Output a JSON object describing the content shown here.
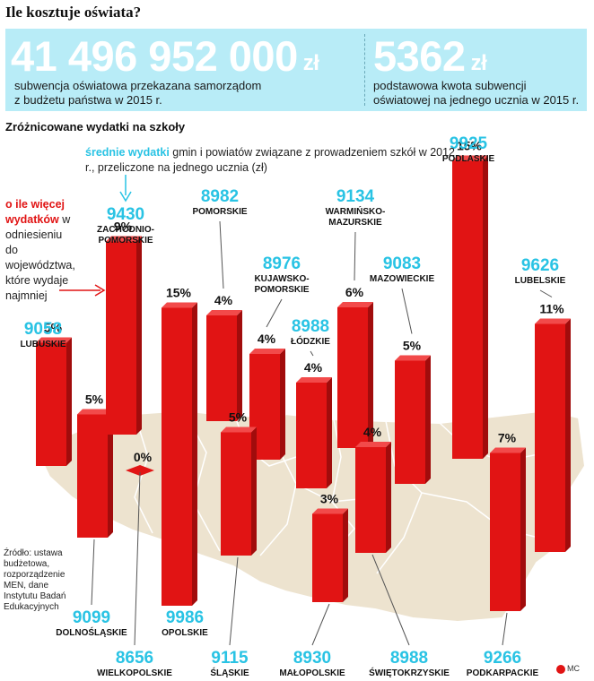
{
  "title": "Ile kosztuje oświata?",
  "banner": {
    "left_value": "41 496 952 000",
    "left_unit": "zł",
    "left_text_1": "subwencja oświatowa przekazana samorządom",
    "left_text_2": "z budżetu państwa w 2015 r.",
    "right_value": "5362",
    "right_unit": "zł",
    "right_text_1": "podstawowa kwota subwencji",
    "right_text_2": "oświatowej na jednego ucznia w 2015 r."
  },
  "subheading": "Zróżnicowane wydatki na szkoły",
  "legend": {
    "cyan_bold": "średnie wydatki",
    "cyan_rest": " gmin i powiatów związane z prowadzeniem szkół w 2012 r., przeliczone na jednego ucznia (zł)",
    "red_bold": "o ile więcej wydatków",
    "red_rest": " w odniesieniu do województwa, które wydaje najmniej"
  },
  "source": "Źródło: ustawa budżetowa, rozporządzenie MEN, dane Instytutu Badań Edukacyjnych",
  "credit": "MC",
  "colors": {
    "accent": "#29c3e4",
    "bar": "#e11414",
    "map": "#ede3cf"
  },
  "chart_data": {
    "type": "bar",
    "title": "Zróżnicowane wydatki na szkoły",
    "series": [
      {
        "name": "średnie wydatki (zł)",
        "values": [
          9058,
          9099,
          8656,
          9430,
          8982,
          9986,
          8976,
          9115,
          8988,
          8930,
          9134,
          9083,
          8988,
          9925,
          9266,
          9626
        ]
      },
      {
        "name": "o ile więcej wydatków (%)",
        "values": [
          5,
          5,
          0,
          9,
          4,
          15,
          4,
          5,
          4,
          3,
          6,
          5,
          4,
          15,
          7,
          11
        ]
      }
    ],
    "categories": [
      "LUBUSKIE",
      "DOLNOŚLĄSKIE",
      "WIELKOPOLSKIE",
      "ZACHODNIO-POMORSKIE",
      "POMORSKIE",
      "OPOLSKIE",
      "KUJAWSKO-POMORSKIE",
      "ŚLĄSKIE",
      "ŁÓDZKIE",
      "MAŁOPOLSKIE",
      "WARMIŃSKO-MAZURSKIE",
      "MAZOWIECKIE",
      "ŚWIĘTOKRZYSKIE",
      "PODLASKIE",
      "PODKARPACKIE",
      "LUBELSKIE"
    ],
    "regions": [
      {
        "name": "LUBUSKIE",
        "value": "9058",
        "pct": "5%",
        "pct_num": 5
      },
      {
        "name": "DOLNOŚLĄSKIE",
        "value": "9099",
        "pct": "5%",
        "pct_num": 5
      },
      {
        "name": "WIELKOPOLSKIE",
        "value": "8656",
        "pct": "0%",
        "pct_num": 0
      },
      {
        "name": "ZACHODNIO-POMORSKIE",
        "value": "9430",
        "pct": "9%",
        "pct_num": 9
      },
      {
        "name": "POMORSKIE",
        "value": "8982",
        "pct": "4%",
        "pct_num": 4
      },
      {
        "name": "OPOLSKIE",
        "value": "9986",
        "pct": "15%",
        "pct_num": 15
      },
      {
        "name": "KUJAWSKO-POMORSKIE",
        "value": "8976",
        "pct": "4%",
        "pct_num": 4
      },
      {
        "name": "ŚLĄSKIE",
        "value": "9115",
        "pct": "5%",
        "pct_num": 5
      },
      {
        "name": "ŁÓDZKIE",
        "value": "8988",
        "pct": "4%",
        "pct_num": 4
      },
      {
        "name": "MAŁOPOLSKIE",
        "value": "8930",
        "pct": "3%",
        "pct_num": 3
      },
      {
        "name": "WARMIŃSKO-MAZURSKIE",
        "value": "9134",
        "pct": "6%",
        "pct_num": 6
      },
      {
        "name": "MAZOWIECKIE",
        "value": "9083",
        "pct": "5%",
        "pct_num": 5
      },
      {
        "name": "ŚWIĘTOKRZYSKIE",
        "value": "8988",
        "pct": "4%",
        "pct_num": 4
      },
      {
        "name": "PODLASKIE",
        "value": "9925",
        "pct": "15%",
        "pct_num": 15
      },
      {
        "name": "PODKARPACKIE",
        "value": "9266",
        "pct": "7%",
        "pct_num": 7
      },
      {
        "name": "LUBELSKIE",
        "value": "9626",
        "pct": "11%",
        "pct_num": 11
      }
    ]
  }
}
